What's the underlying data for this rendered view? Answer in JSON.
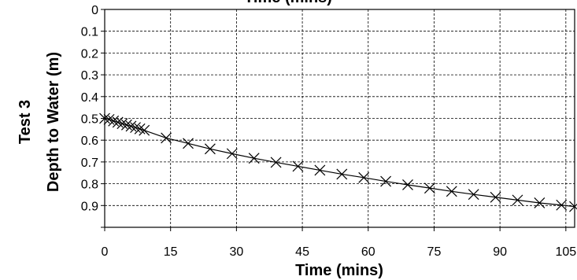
{
  "chart_data": {
    "type": "scatter",
    "title": "",
    "top_axis_title_partial": "Time (mins)",
    "side_label": "Test 3",
    "xlabel": "Time (mins)",
    "ylabel": "Depth to Water (m)",
    "xlim": [
      0,
      107
    ],
    "ylim": [
      1.0,
      0.0
    ],
    "y_inverted": true,
    "x_ticks": [
      0,
      15,
      30,
      45,
      60,
      75,
      90,
      105
    ],
    "y_ticks": [
      0,
      0.1,
      0.2,
      0.3,
      0.4,
      0.5,
      0.6,
      0.7,
      0.8,
      0.9
    ],
    "y_tick_labels": [
      "0",
      "0.1",
      "0.2",
      "0.3",
      "0.4",
      "0.5",
      "0.6",
      "0.7",
      "0.8",
      "0.9"
    ],
    "grid": "dashed",
    "marker": "x",
    "series": [
      {
        "points": [
          {
            "x": 0,
            "y": 0.5
          },
          {
            "x": 1,
            "y": 0.505
          },
          {
            "x": 2,
            "y": 0.512
          },
          {
            "x": 3,
            "y": 0.518
          },
          {
            "x": 4,
            "y": 0.524
          },
          {
            "x": 5,
            "y": 0.53
          },
          {
            "x": 6,
            "y": 0.536
          },
          {
            "x": 7,
            "y": 0.542
          },
          {
            "x": 8,
            "y": 0.548
          },
          {
            "x": 9,
            "y": 0.555
          },
          {
            "x": 14,
            "y": 0.59
          },
          {
            "x": 19,
            "y": 0.615
          },
          {
            "x": 24,
            "y": 0.64
          },
          {
            "x": 29,
            "y": 0.662
          },
          {
            "x": 34,
            "y": 0.683
          },
          {
            "x": 39,
            "y": 0.702
          },
          {
            "x": 44,
            "y": 0.72
          },
          {
            "x": 49,
            "y": 0.738
          },
          {
            "x": 54,
            "y": 0.756
          },
          {
            "x": 59,
            "y": 0.772
          },
          {
            "x": 64,
            "y": 0.789
          },
          {
            "x": 69,
            "y": 0.805
          },
          {
            "x": 74,
            "y": 0.82
          },
          {
            "x": 79,
            "y": 0.835
          },
          {
            "x": 84,
            "y": 0.849
          },
          {
            "x": 89,
            "y": 0.862
          },
          {
            "x": 94,
            "y": 0.875
          },
          {
            "x": 99,
            "y": 0.888
          },
          {
            "x": 104,
            "y": 0.898
          },
          {
            "x": 107,
            "y": 0.905
          }
        ]
      }
    ]
  }
}
